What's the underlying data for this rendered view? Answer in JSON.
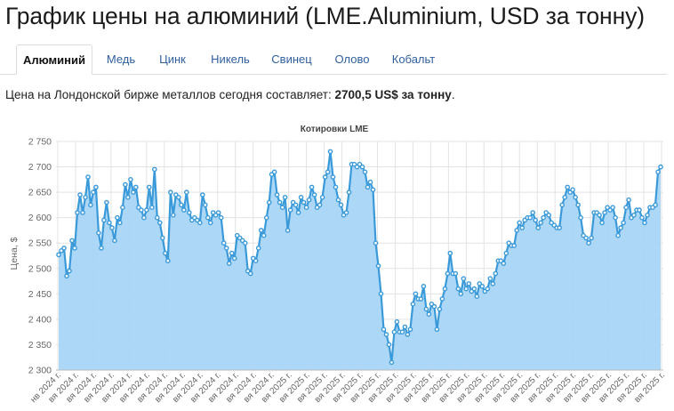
{
  "page": {
    "title": "График цены на алюминий (LME.Aluminium, USD за тонну)"
  },
  "tabs": [
    {
      "label": "Алюминий",
      "active": true
    },
    {
      "label": "Медь",
      "active": false
    },
    {
      "label": "Цинк",
      "active": false
    },
    {
      "label": "Никель",
      "active": false
    },
    {
      "label": "Свинец",
      "active": false
    },
    {
      "label": "Олово",
      "active": false
    },
    {
      "label": "Кобальт",
      "active": false
    }
  ],
  "price_info": {
    "prefix": "Цена на Лондонской бирже металлов сегодня составляет: ",
    "value": "2700,5 US$ за тонну",
    "suffix": "."
  },
  "colors": {
    "line": "#3a9ad9",
    "area": "#a9d5f5",
    "grid": "#e3e3e3",
    "active_tab_text": "#111111",
    "tab_text": "#2f5f9e"
  },
  "chart_data": {
    "type": "area",
    "title": "Котировки LME",
    "ylabel": "Цена, $",
    "xlabel": "",
    "ylim": [
      2300,
      2750
    ],
    "yticks": [
      "2 300",
      "2 350",
      "2 400",
      "2 450",
      "2 500",
      "2 550",
      "2 600",
      "2 650",
      "2 700",
      "2 750"
    ],
    "xticks": [
      "нв 2024 г.",
      "вя 2024 г.",
      "вя 2024 г.",
      "вя 2024 г.",
      "вя 2024 г.",
      "вя 2024 г.",
      "вя 2024 г.",
      "вя 2024 г.",
      "вя 2024 г.",
      "вя 2024 г.",
      "вя 2024 г.",
      "вя 2024 г.",
      "вя 2024 г.",
      "вя 2025 г.",
      "вя 2025 г.",
      "вя 2025 г.",
      "вя 2025 г.",
      "вя 2025 г.",
      "вя 2025 г.",
      "вя 2025 г.",
      "вя 2025 г.",
      "вя 2025 г.",
      "вя 2025 г.",
      "вя 2025 г.",
      "вя 2025 г.",
      "вя 2025 г.",
      "вя 2025 г.",
      "вя 2025 г.",
      "вя 2025 г.",
      "вя 2025 г.",
      "вя 2025 г.",
      "вя 2025 г.",
      "вя 2025 г.",
      "вя 2025 г.",
      "вя 2025 г."
    ],
    "grid": true,
    "legend": "none",
    "series": [
      {
        "values": [
          2527,
          2535,
          2540,
          2485,
          2495,
          2555,
          2540,
          2610,
          2645,
          2610,
          2640,
          2680,
          2625,
          2650,
          2660,
          2570,
          2540,
          2595,
          2630,
          2590,
          2580,
          2555,
          2600,
          2590,
          2620,
          2665,
          2640,
          2675,
          2650,
          2660,
          2620,
          2615,
          2600,
          2615,
          2660,
          2620,
          2695,
          2600,
          2590,
          2560,
          2530,
          2515,
          2650,
          2605,
          2645,
          2640,
          2625,
          2615,
          2650,
          2610,
          2595,
          2600,
          2595,
          2590,
          2645,
          2625,
          2600,
          2590,
          2610,
          2605,
          2610,
          2600,
          2550,
          2540,
          2510,
          2530,
          2520,
          2565,
          2560,
          2555,
          2550,
          2495,
          2490,
          2520,
          2515,
          2540,
          2575,
          2565,
          2600,
          2630,
          2685,
          2690,
          2645,
          2630,
          2620,
          2640,
          2575,
          2615,
          2630,
          2625,
          2610,
          2640,
          2630,
          2620,
          2635,
          2660,
          2645,
          2620,
          2625,
          2640,
          2680,
          2690,
          2730,
          2680,
          2660,
          2635,
          2625,
          2605,
          2610,
          2650,
          2705,
          2705,
          2700,
          2705,
          2700,
          2690,
          2660,
          2670,
          2655,
          2550,
          2505,
          2450,
          2380,
          2370,
          2350,
          2315,
          2375,
          2395,
          2375,
          2375,
          2385,
          2370,
          2380,
          2430,
          2450,
          2440,
          2440,
          2465,
          2420,
          2410,
          2430,
          2425,
          2380,
          2420,
          2440,
          2460,
          2490,
          2530,
          2490,
          2490,
          2460,
          2450,
          2480,
          2460,
          2470,
          2455,
          2460,
          2445,
          2470,
          2465,
          2455,
          2460,
          2480,
          2470,
          2490,
          2515,
          2515,
          2510,
          2530,
          2550,
          2545,
          2545,
          2575,
          2590,
          2580,
          2595,
          2600,
          2600,
          2610,
          2595,
          2580,
          2590,
          2600,
          2610,
          2605,
          2590,
          2585,
          2580,
          2580,
          2625,
          2640,
          2660,
          2650,
          2655,
          2640,
          2625,
          2600,
          2565,
          2560,
          2550,
          2560,
          2610,
          2610,
          2605,
          2590,
          2610,
          2620,
          2615,
          2620,
          2600,
          2565,
          2580,
          2590,
          2620,
          2635,
          2600,
          2605,
          2615,
          2615,
          2600,
          2590,
          2605,
          2620,
          2620,
          2625,
          2690,
          2700
        ]
      }
    ]
  }
}
